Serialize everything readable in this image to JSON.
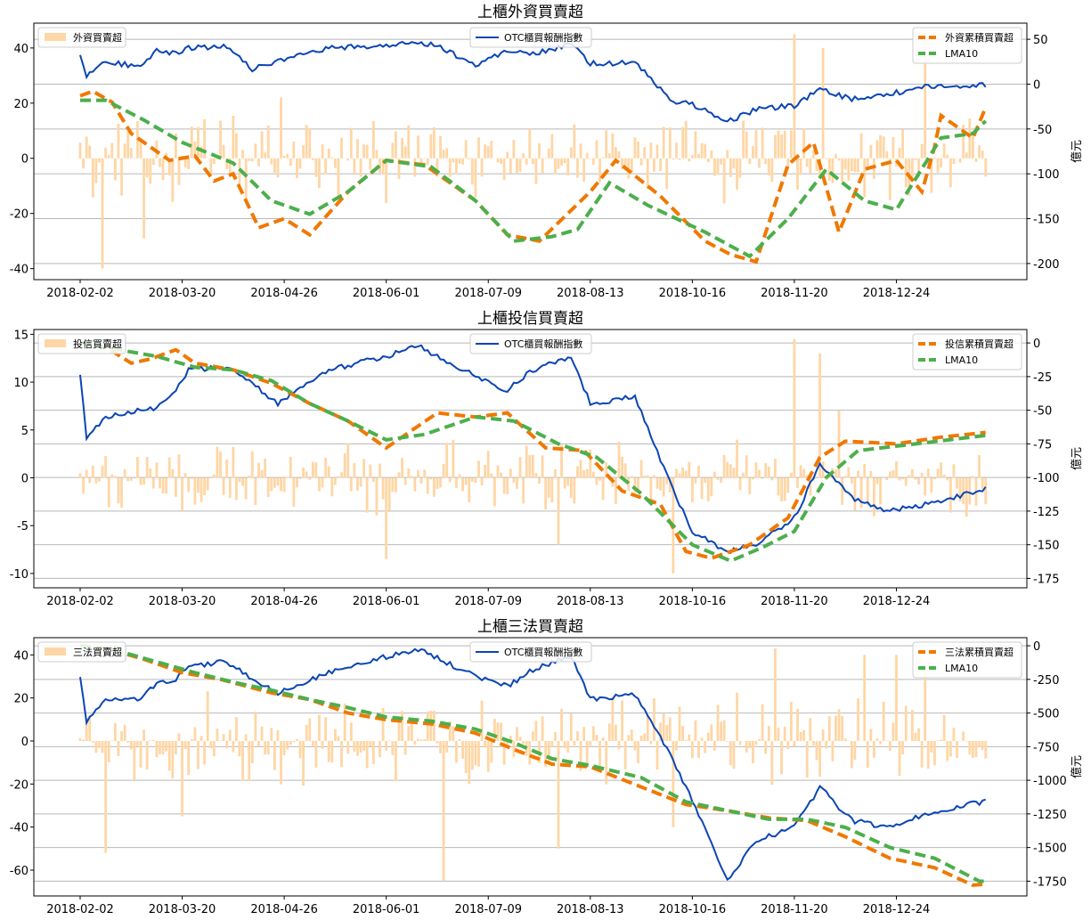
{
  "chart_data": [
    {
      "type": "bar+line",
      "title": "上櫃外資買賣超",
      "ylabel_right": "億元",
      "x_tick_labels": [
        "2018-02-02",
        "2018-03-20",
        "2018-04-26",
        "2018-06-01",
        "2018-07-09",
        "2018-08-13",
        "2018-10-16",
        "2018-11-20",
        "2018-12-24"
      ],
      "x_tick_positions": [
        0,
        32,
        64,
        96,
        128,
        160,
        192,
        224,
        256
      ],
      "n_points": 285,
      "left_axis": {
        "ylim": [
          -44,
          49
        ],
        "ticks": [
          -40,
          -20,
          0,
          20,
          40
        ]
      },
      "right_axis": {
        "ylim": [
          -218,
          68
        ],
        "ticks": [
          -200,
          -150,
          -100,
          -50,
          0,
          50
        ]
      },
      "legends": {
        "bar": "外資買賣超",
        "index": "OTC櫃買報酬指數",
        "cum": "外資累積買賣超",
        "lma": "LMA10"
      },
      "bar_amplitude": 12,
      "bar_spikes": [
        [
          7,
          -40
        ],
        [
          20,
          -29
        ],
        [
          63,
          22
        ],
        [
          224,
          45
        ],
        [
          233,
          40
        ],
        [
          265,
          46
        ]
      ],
      "index_keypoints": [
        [
          0,
          34
        ],
        [
          2,
          10
        ],
        [
          8,
          25
        ],
        [
          18,
          20
        ],
        [
          24,
          37
        ],
        [
          30,
          35
        ],
        [
          34,
          40
        ],
        [
          46,
          43
        ],
        [
          54,
          17
        ],
        [
          62,
          25
        ],
        [
          78,
          40
        ],
        [
          96,
          43
        ],
        [
          106,
          47
        ],
        [
          112,
          43
        ],
        [
          124,
          21
        ],
        [
          134,
          38
        ],
        [
          142,
          34
        ],
        [
          154,
          44
        ],
        [
          160,
          23
        ],
        [
          174,
          24
        ],
        [
          186,
          -20
        ],
        [
          192,
          -22
        ],
        [
          203,
          -42
        ],
        [
          212,
          -28
        ],
        [
          224,
          -24
        ],
        [
          232,
          -6
        ],
        [
          242,
          -17
        ],
        [
          254,
          -11
        ],
        [
          265,
          -3
        ],
        [
          285,
          -1
        ]
      ],
      "cum_keypoints": [
        [
          0,
          -13
        ],
        [
          4,
          -8
        ],
        [
          10,
          -20
        ],
        [
          16,
          -55
        ],
        [
          28,
          -85
        ],
        [
          36,
          -80
        ],
        [
          42,
          -108
        ],
        [
          48,
          -100
        ],
        [
          56,
          -160
        ],
        [
          64,
          -150
        ],
        [
          72,
          -168
        ],
        [
          84,
          -120
        ],
        [
          96,
          -85
        ],
        [
          108,
          -90
        ],
        [
          124,
          -130
        ],
        [
          134,
          -168
        ],
        [
          144,
          -175
        ],
        [
          160,
          -120
        ],
        [
          168,
          -85
        ],
        [
          182,
          -125
        ],
        [
          196,
          -175
        ],
        [
          204,
          -190
        ],
        [
          212,
          -198
        ],
        [
          222,
          -90
        ],
        [
          230,
          -65
        ],
        [
          238,
          -165
        ],
        [
          246,
          -95
        ],
        [
          256,
          -85
        ],
        [
          264,
          -120
        ],
        [
          268,
          -70
        ],
        [
          270,
          -35
        ],
        [
          280,
          -60
        ],
        [
          290,
          25
        ]
      ],
      "lma_keypoints": [
        [
          0,
          -18
        ],
        [
          8,
          -18
        ],
        [
          20,
          -40
        ],
        [
          32,
          -65
        ],
        [
          48,
          -88
        ],
        [
          60,
          -130
        ],
        [
          72,
          -145
        ],
        [
          84,
          -120
        ],
        [
          96,
          -85
        ],
        [
          110,
          -92
        ],
        [
          124,
          -130
        ],
        [
          136,
          -175
        ],
        [
          148,
          -170
        ],
        [
          156,
          -162
        ],
        [
          166,
          -110
        ],
        [
          178,
          -135
        ],
        [
          196,
          -165
        ],
        [
          210,
          -192
        ],
        [
          222,
          -150
        ],
        [
          234,
          -95
        ],
        [
          246,
          -130
        ],
        [
          256,
          -140
        ],
        [
          270,
          -60
        ],
        [
          280,
          -55
        ],
        [
          290,
          -20
        ]
      ]
    },
    {
      "type": "bar+line",
      "title": "上櫃投信買賣超",
      "ylabel_right": "億元",
      "x_tick_labels": [
        "2018-02-02",
        "2018-03-20",
        "2018-04-26",
        "2018-06-01",
        "2018-07-09",
        "2018-08-13",
        "2018-10-16",
        "2018-11-20",
        "2018-12-24"
      ],
      "x_tick_positions": [
        0,
        32,
        64,
        96,
        128,
        160,
        192,
        224,
        256
      ],
      "n_points": 285,
      "left_axis": {
        "ylim": [
          -11.5,
          15.5
        ],
        "ticks": [
          -10,
          -5,
          0,
          5,
          10,
          15
        ]
      },
      "right_axis": {
        "ylim": [
          -182,
          10
        ],
        "ticks": [
          -175,
          -150,
          -125,
          -100,
          -75,
          -50,
          -25,
          0
        ]
      },
      "legends": {
        "bar": "投信買賣超",
        "index": "OTC櫃買報酬指數",
        "cum": "投信累積買賣超",
        "lma": "LMA10"
      },
      "bar_amplitude": 3,
      "bar_spikes": [
        [
          96,
          -8.5
        ],
        [
          150,
          -7
        ],
        [
          186,
          -10
        ],
        [
          224,
          14.5
        ],
        [
          232,
          13
        ],
        [
          238,
          7
        ]
      ],
      "index_keypoints": [
        [
          0,
          -25
        ],
        [
          2,
          -70
        ],
        [
          8,
          -55
        ],
        [
          18,
          -50
        ],
        [
          24,
          -48
        ],
        [
          30,
          -35
        ],
        [
          34,
          -20
        ],
        [
          46,
          -18
        ],
        [
          54,
          -30
        ],
        [
          62,
          -45
        ],
        [
          78,
          -20
        ],
        [
          96,
          -10
        ],
        [
          106,
          -2
        ],
        [
          112,
          -10
        ],
        [
          124,
          -25
        ],
        [
          134,
          -35
        ],
        [
          142,
          -20
        ],
        [
          154,
          -10
        ],
        [
          160,
          -45
        ],
        [
          174,
          -40
        ],
        [
          186,
          -110
        ],
        [
          192,
          -140
        ],
        [
          203,
          -155
        ],
        [
          212,
          -150
        ],
        [
          224,
          -130
        ],
        [
          232,
          -90
        ],
        [
          242,
          -115
        ],
        [
          254,
          -125
        ],
        [
          265,
          -120
        ],
        [
          285,
          -108
        ]
      ],
      "cum_keypoints": [
        [
          0,
          0
        ],
        [
          8,
          -3
        ],
        [
          16,
          -15
        ],
        [
          22,
          -12
        ],
        [
          30,
          -5
        ],
        [
          36,
          -15
        ],
        [
          48,
          -20
        ],
        [
          60,
          -30
        ],
        [
          72,
          -45
        ],
        [
          84,
          -58
        ],
        [
          96,
          -78
        ],
        [
          112,
          -52
        ],
        [
          124,
          -55
        ],
        [
          134,
          -52
        ],
        [
          146,
          -78
        ],
        [
          158,
          -80
        ],
        [
          170,
          -110
        ],
        [
          182,
          -120
        ],
        [
          190,
          -155
        ],
        [
          198,
          -160
        ],
        [
          210,
          -150
        ],
        [
          222,
          -130
        ],
        [
          232,
          -85
        ],
        [
          240,
          -73
        ],
        [
          256,
          -75
        ],
        [
          270,
          -70
        ],
        [
          290,
          -65
        ]
      ],
      "lma_keypoints": [
        [
          0,
          0
        ],
        [
          12,
          -5
        ],
        [
          24,
          -10
        ],
        [
          36,
          -18
        ],
        [
          48,
          -20
        ],
        [
          60,
          -28
        ],
        [
          72,
          -45
        ],
        [
          84,
          -58
        ],
        [
          96,
          -72
        ],
        [
          108,
          -68
        ],
        [
          124,
          -55
        ],
        [
          136,
          -58
        ],
        [
          150,
          -75
        ],
        [
          162,
          -85
        ],
        [
          176,
          -112
        ],
        [
          192,
          -150
        ],
        [
          204,
          -162
        ],
        [
          214,
          -152
        ],
        [
          224,
          -140
        ],
        [
          234,
          -100
        ],
        [
          244,
          -80
        ],
        [
          262,
          -75
        ],
        [
          290,
          -67
        ]
      ]
    },
    {
      "type": "bar+line",
      "title": "上櫃三法買賣超",
      "ylabel_right": "億元",
      "x_tick_labels": [
        "2018-02-02",
        "2018-03-20",
        "2018-04-26",
        "2018-06-01",
        "2018-07-09",
        "2018-08-13",
        "2018-10-16",
        "2018-11-20",
        "2018-12-24"
      ],
      "x_tick_positions": [
        0,
        32,
        64,
        96,
        128,
        160,
        192,
        224,
        256
      ],
      "n_points": 285,
      "left_axis": {
        "ylim": [
          -72,
          48
        ],
        "ticks": [
          -60,
          -40,
          -20,
          0,
          20,
          40
        ]
      },
      "right_axis": {
        "ylim": [
          -1860,
          60
        ],
        "ticks": [
          -1750,
          -1500,
          -1250,
          -1000,
          -750,
          -500,
          -250,
          0
        ]
      },
      "legends": {
        "bar": "三法買賣超",
        "index": "OTC櫃買報酬指數",
        "cum": "三法累積買賣超",
        "lma": "LMA10"
      },
      "bar_amplitude": 16,
      "bar_spikes": [
        [
          8,
          -52
        ],
        [
          32,
          -35
        ],
        [
          114,
          -65
        ],
        [
          150,
          -50
        ],
        [
          186,
          -40
        ],
        [
          218,
          43
        ],
        [
          246,
          40
        ],
        [
          256,
          40
        ],
        [
          265,
          35
        ]
      ],
      "index_keypoints": [
        [
          0,
          -230
        ],
        [
          2,
          -560
        ],
        [
          8,
          -400
        ],
        [
          18,
          -400
        ],
        [
          24,
          -280
        ],
        [
          30,
          -250
        ],
        [
          34,
          -150
        ],
        [
          46,
          -120
        ],
        [
          54,
          -250
        ],
        [
          62,
          -350
        ],
        [
          78,
          -200
        ],
        [
          96,
          -80
        ],
        [
          106,
          -30
        ],
        [
          112,
          -90
        ],
        [
          124,
          -230
        ],
        [
          134,
          -300
        ],
        [
          142,
          -180
        ],
        [
          154,
          -80
        ],
        [
          160,
          -400
        ],
        [
          174,
          -360
        ],
        [
          186,
          -850
        ],
        [
          192,
          -1150
        ],
        [
          203,
          -1750
        ],
        [
          212,
          -1450
        ],
        [
          224,
          -1350
        ],
        [
          232,
          -1050
        ],
        [
          242,
          -1300
        ],
        [
          254,
          -1350
        ],
        [
          265,
          -1250
        ],
        [
          285,
          -1150
        ]
      ],
      "cum_keypoints": [
        [
          0,
          0
        ],
        [
          8,
          -20
        ],
        [
          20,
          -100
        ],
        [
          32,
          -200
        ],
        [
          44,
          -250
        ],
        [
          60,
          -350
        ],
        [
          72,
          -400
        ],
        [
          84,
          -500
        ],
        [
          96,
          -550
        ],
        [
          110,
          -580
        ],
        [
          124,
          -650
        ],
        [
          136,
          -770
        ],
        [
          148,
          -880
        ],
        [
          160,
          -900
        ],
        [
          176,
          -1050
        ],
        [
          190,
          -1180
        ],
        [
          204,
          -1230
        ],
        [
          216,
          -1280
        ],
        [
          228,
          -1300
        ],
        [
          240,
          -1420
        ],
        [
          254,
          -1580
        ],
        [
          268,
          -1650
        ],
        [
          280,
          -1780
        ],
        [
          290,
          -1760
        ]
      ],
      "lma_keypoints": [
        [
          0,
          0
        ],
        [
          12,
          -40
        ],
        [
          24,
          -120
        ],
        [
          36,
          -200
        ],
        [
          48,
          -270
        ],
        [
          60,
          -330
        ],
        [
          72,
          -400
        ],
        [
          84,
          -460
        ],
        [
          96,
          -530
        ],
        [
          110,
          -560
        ],
        [
          124,
          -620
        ],
        [
          136,
          -720
        ],
        [
          148,
          -840
        ],
        [
          160,
          -890
        ],
        [
          176,
          -980
        ],
        [
          190,
          -1160
        ],
        [
          204,
          -1230
        ],
        [
          216,
          -1290
        ],
        [
          228,
          -1290
        ],
        [
          240,
          -1350
        ],
        [
          254,
          -1500
        ],
        [
          268,
          -1580
        ],
        [
          282,
          -1750
        ],
        [
          290,
          -1760
        ]
      ]
    }
  ]
}
